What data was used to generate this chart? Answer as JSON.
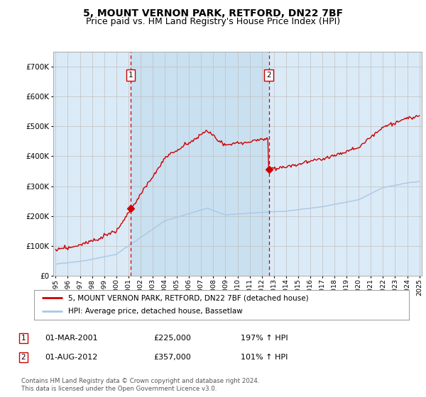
{
  "title": "5, MOUNT VERNON PARK, RETFORD, DN22 7BF",
  "subtitle": "Price paid vs. HM Land Registry's House Price Index (HPI)",
  "ylim": [
    0,
    750000
  ],
  "yticks": [
    0,
    100000,
    200000,
    300000,
    400000,
    500000,
    600000,
    700000
  ],
  "ytick_labels": [
    "£0",
    "£100K",
    "£200K",
    "£300K",
    "£400K",
    "£500K",
    "£600K",
    "£700K"
  ],
  "hpi_color": "#a8c8e8",
  "price_color": "#cc0000",
  "vline_color": "#cc0000",
  "background_color": "#dbeaf7",
  "highlight_color": "#c8dff0",
  "grid_color": "#c0c0c0",
  "legend_line1": "5, MOUNT VERNON PARK, RETFORD, DN22 7BF (detached house)",
  "legend_line2": "HPI: Average price, detached house, Bassetlaw",
  "annotation1_label": "1",
  "annotation1_date": "01-MAR-2001",
  "annotation1_price": "£225,000",
  "annotation1_hpi": "197% ↑ HPI",
  "annotation2_label": "2",
  "annotation2_date": "01-AUG-2012",
  "annotation2_price": "£357,000",
  "annotation2_hpi": "101% ↑ HPI",
  "footnote": "Contains HM Land Registry data © Crown copyright and database right 2024.\nThis data is licensed under the Open Government Licence v3.0.",
  "title_fontsize": 10,
  "subtitle_fontsize": 9,
  "tick_fontsize": 7.5,
  "x_start_year": 1995,
  "x_end_year": 2025,
  "sale1_year": 2001.17,
  "sale2_year": 2012.58,
  "sale1_price": 225000,
  "sale2_price": 357000
}
